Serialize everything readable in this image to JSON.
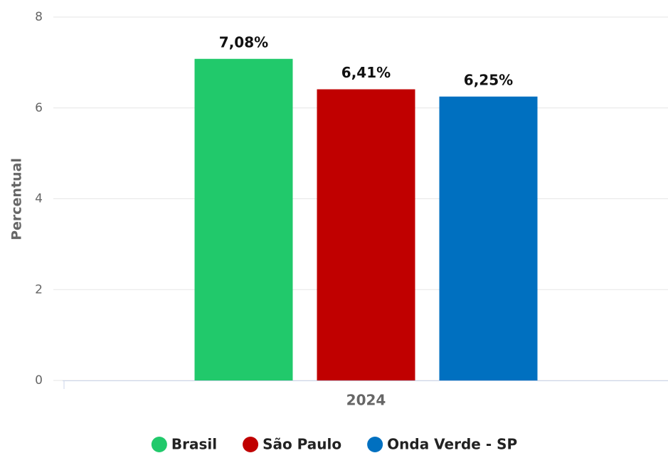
{
  "chart_data": {
    "type": "bar",
    "y_label": "Percentual",
    "categories": [
      "2024"
    ],
    "series": [
      {
        "name": "Brasil",
        "color": "#21c96b",
        "values": [
          7.08
        ],
        "value_labels": [
          "7,08%"
        ]
      },
      {
        "name": "São Paulo",
        "color": "#c00000",
        "values": [
          6.41
        ],
        "value_labels": [
          "6,41%"
        ]
      },
      {
        "name": "Onda Verde - SP",
        "color": "#0070c0",
        "values": [
          6.25
        ],
        "value_labels": [
          "6,25%"
        ]
      }
    ],
    "ylim": [
      0,
      8
    ],
    "yticks": [
      0,
      2,
      4,
      6,
      8
    ],
    "grid": true,
    "legend": "bottom"
  }
}
